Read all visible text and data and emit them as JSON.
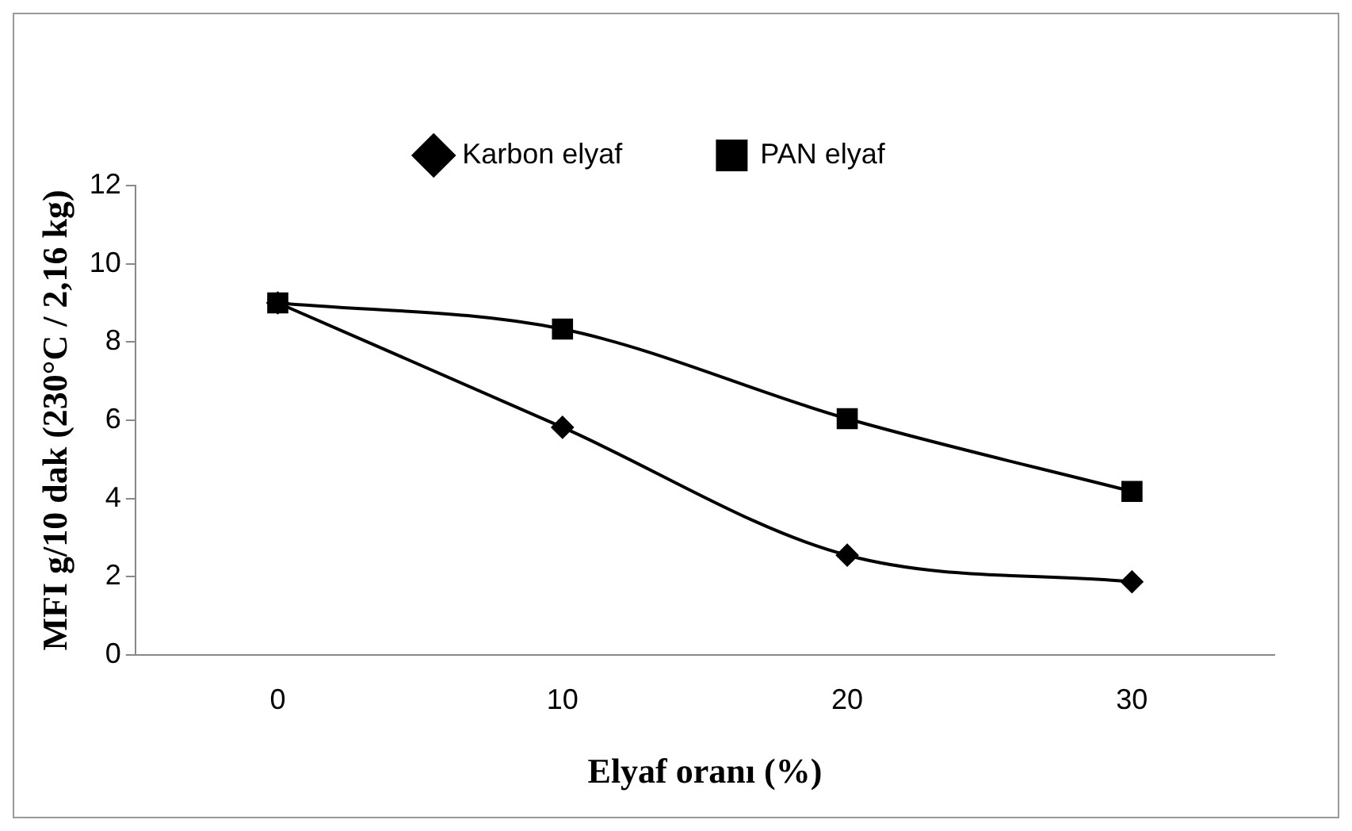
{
  "chart_data": {
    "type": "line",
    "xlabel": "Elyaf oranı (%)",
    "ylabel": "MFI g/10 dak (230°C / 2,16 kg)",
    "categories": [
      "0",
      "10",
      "20",
      "30"
    ],
    "ylim": [
      0,
      12
    ],
    "yticks": [
      0,
      2,
      4,
      6,
      8,
      10,
      12
    ],
    "grid": false,
    "legend": "top",
    "line_style": "solid",
    "series": [
      {
        "name": "Karbon elyaf",
        "color": "#000000",
        "marker": "diamond",
        "values": [
          9,
          5.82,
          2.55,
          1.87
        ]
      },
      {
        "name": "PAN elyaf",
        "color": "#000000",
        "marker": "square",
        "values": [
          9,
          8.33,
          6.04,
          4.18
        ]
      }
    ]
  }
}
